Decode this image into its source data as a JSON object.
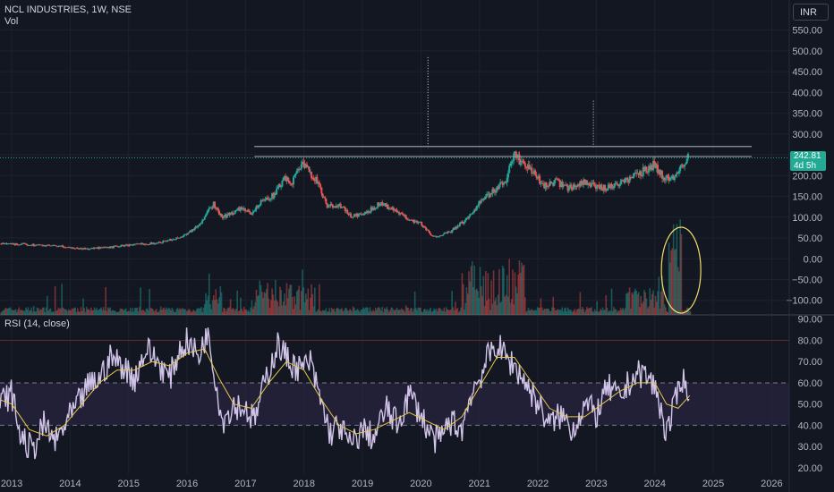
{
  "header": {
    "symbol": "NCL INDUSTRIES, 1W, NSE",
    "volume_label": "Vol"
  },
  "currency_button": "INR",
  "last_price": {
    "value": "242.81",
    "countdown": "4d 5h"
  },
  "rsi_label": "RSI (14, close)",
  "colors": {
    "up": "#26a69a",
    "down": "#ef5350",
    "rsi": "#d1c4e9",
    "rsi_ma": "#e6c74a",
    "band_fill": "#2a2540",
    "ellipse": "#f2dc6a",
    "resistance": "#9598a1"
  },
  "chart_data": [
    {
      "type": "candlestick",
      "title": "NCL INDUSTRIES, 1W, NSE",
      "y_axis": {
        "ticks": [
          -100,
          -50,
          0,
          50,
          100,
          150,
          200,
          250,
          300,
          350,
          400,
          450,
          500,
          550
        ],
        "tick_labels": [
          "−100.00",
          "−50.00",
          "0.00",
          "50.00",
          "100.00",
          "150.00",
          "200.00",
          "250.00",
          "300.00",
          "350.00",
          "400.00",
          "450.00",
          "500.00",
          "550.00"
        ],
        "ylim": [
          -135,
          575
        ]
      },
      "x_axis": {
        "tick_labels": [
          "2013",
          "2014",
          "2015",
          "2016",
          "2017",
          "2018",
          "2019",
          "2020",
          "2021",
          "2022",
          "2023",
          "2024",
          "2025",
          "2026"
        ],
        "xlim": [
          2012.8,
          2026.3
        ]
      },
      "price_path": [
        [
          2012.8,
          36
        ],
        [
          2013.3,
          34
        ],
        [
          2013.8,
          30
        ],
        [
          2014.2,
          24
        ],
        [
          2014.6,
          26
        ],
        [
          2015.0,
          33
        ],
        [
          2015.5,
          38
        ],
        [
          2015.9,
          52
        ],
        [
          2016.2,
          80
        ],
        [
          2016.45,
          132
        ],
        [
          2016.6,
          98
        ],
        [
          2016.9,
          120
        ],
        [
          2017.1,
          110
        ],
        [
          2017.3,
          140
        ],
        [
          2017.5,
          155
        ],
        [
          2017.65,
          190
        ],
        [
          2017.8,
          185
        ],
        [
          2017.95,
          230
        ],
        [
          2018.05,
          215
        ],
        [
          2018.2,
          192
        ],
        [
          2018.4,
          125
        ],
        [
          2018.6,
          130
        ],
        [
          2018.8,
          102
        ],
        [
          2019.05,
          108
        ],
        [
          2019.3,
          135
        ],
        [
          2019.55,
          115
        ],
        [
          2019.8,
          95
        ],
        [
          2020.0,
          85
        ],
        [
          2020.2,
          52
        ],
        [
          2020.5,
          64
        ],
        [
          2020.8,
          98
        ],
        [
          2021.0,
          135
        ],
        [
          2021.2,
          158
        ],
        [
          2021.45,
          190
        ],
        [
          2021.6,
          250
        ],
        [
          2021.7,
          235
        ],
        [
          2021.9,
          210
        ],
        [
          2022.1,
          175
        ],
        [
          2022.3,
          185
        ],
        [
          2022.5,
          170
        ],
        [
          2022.8,
          185
        ],
        [
          2023.0,
          170
        ],
        [
          2023.2,
          172
        ],
        [
          2023.5,
          188
        ],
        [
          2023.8,
          210
        ],
        [
          2024.0,
          228
        ],
        [
          2024.15,
          192
        ],
        [
          2024.3,
          195
        ],
        [
          2024.5,
          232
        ],
        [
          2024.58,
          243
        ]
      ],
      "resistance_levels": [
        270,
        246
      ],
      "dotted_spikes": [
        {
          "x": 2020.12,
          "top": 485
        },
        {
          "x": 2022.95,
          "top": 380
        }
      ],
      "series": [
        {
          "name": "Vol",
          "type": "histogram"
        }
      ]
    },
    {
      "type": "line",
      "title": "RSI (14, close)",
      "y_axis": {
        "ticks": [
          20,
          30,
          40,
          50,
          60,
          70,
          80,
          90
        ],
        "tick_labels": [
          "20.00",
          "30.00",
          "40.00",
          "50.00",
          "60.00",
          "70.00",
          "80.00",
          "90.00"
        ],
        "ylim": [
          17,
          92
        ]
      },
      "bands": {
        "upper_dashed": 60,
        "lower_dashed": 40,
        "overbought": 80
      },
      "rsi_path": [
        [
          2012.8,
          50
        ],
        [
          2013.0,
          55
        ],
        [
          2013.15,
          35
        ],
        [
          2013.35,
          28
        ],
        [
          2013.55,
          40
        ],
        [
          2013.75,
          32
        ],
        [
          2013.95,
          42
        ],
        [
          2014.1,
          48
        ],
        [
          2014.3,
          58
        ],
        [
          2014.5,
          62
        ],
        [
          2014.7,
          72
        ],
        [
          2014.9,
          68
        ],
        [
          2015.1,
          62
        ],
        [
          2015.3,
          76
        ],
        [
          2015.5,
          70
        ],
        [
          2015.7,
          62
        ],
        [
          2015.85,
          74
        ],
        [
          2016.0,
          80
        ],
        [
          2016.2,
          72
        ],
        [
          2016.35,
          85
        ],
        [
          2016.5,
          60
        ],
        [
          2016.6,
          42
        ],
        [
          2016.8,
          50
        ],
        [
          2017.0,
          48
        ],
        [
          2017.15,
          42
        ],
        [
          2017.35,
          62
        ],
        [
          2017.55,
          78
        ],
        [
          2017.75,
          70
        ],
        [
          2017.95,
          66
        ],
        [
          2018.1,
          70
        ],
        [
          2018.3,
          50
        ],
        [
          2018.45,
          36
        ],
        [
          2018.6,
          40
        ],
        [
          2018.8,
          30
        ],
        [
          2019.0,
          38
        ],
        [
          2019.2,
          34
        ],
        [
          2019.4,
          48
        ],
        [
          2019.6,
          40
        ],
        [
          2019.8,
          55
        ],
        [
          2020.0,
          45
        ],
        [
          2020.15,
          36
        ],
        [
          2020.3,
          32
        ],
        [
          2020.5,
          42
        ],
        [
          2020.7,
          38
        ],
        [
          2020.85,
          55
        ],
        [
          2021.0,
          62
        ],
        [
          2021.15,
          72
        ],
        [
          2021.3,
          78
        ],
        [
          2021.45,
          72
        ],
        [
          2021.6,
          68
        ],
        [
          2021.75,
          62
        ],
        [
          2021.9,
          55
        ],
        [
          2022.05,
          48
        ],
        [
          2022.2,
          40
        ],
        [
          2022.4,
          45
        ],
        [
          2022.6,
          38
        ],
        [
          2022.8,
          50
        ],
        [
          2023.0,
          45
        ],
        [
          2023.2,
          58
        ],
        [
          2023.4,
          52
        ],
        [
          2023.6,
          62
        ],
        [
          2023.8,
          65
        ],
        [
          2024.0,
          58
        ],
        [
          2024.1,
          48
        ],
        [
          2024.2,
          36
        ],
        [
          2024.35,
          50
        ],
        [
          2024.45,
          64
        ],
        [
          2024.55,
          56
        ],
        [
          2024.6,
          58
        ]
      ],
      "rsi_ma_path": [
        [
          2012.8,
          52
        ],
        [
          2013.0,
          50
        ],
        [
          2013.3,
          38
        ],
        [
          2013.6,
          35
        ],
        [
          2013.9,
          40
        ],
        [
          2014.2,
          50
        ],
        [
          2014.5,
          60
        ],
        [
          2014.8,
          66
        ],
        [
          2015.1,
          66
        ],
        [
          2015.4,
          70
        ],
        [
          2015.7,
          68
        ],
        [
          2016.0,
          74
        ],
        [
          2016.3,
          76
        ],
        [
          2016.55,
          62
        ],
        [
          2016.8,
          50
        ],
        [
          2017.1,
          48
        ],
        [
          2017.4,
          60
        ],
        [
          2017.7,
          70
        ],
        [
          2018.0,
          66
        ],
        [
          2018.3,
          52
        ],
        [
          2018.6,
          40
        ],
        [
          2018.9,
          36
        ],
        [
          2019.2,
          38
        ],
        [
          2019.5,
          42
        ],
        [
          2019.8,
          46
        ],
        [
          2020.1,
          42
        ],
        [
          2020.4,
          38
        ],
        [
          2020.7,
          44
        ],
        [
          2021.0,
          58
        ],
        [
          2021.3,
          72
        ],
        [
          2021.6,
          72
        ],
        [
          2021.9,
          60
        ],
        [
          2022.2,
          48
        ],
        [
          2022.5,
          44
        ],
        [
          2022.8,
          44
        ],
        [
          2023.1,
          50
        ],
        [
          2023.4,
          56
        ],
        [
          2023.7,
          60
        ],
        [
          2024.0,
          60
        ],
        [
          2024.2,
          50
        ],
        [
          2024.4,
          48
        ],
        [
          2024.6,
          54
        ]
      ]
    }
  ]
}
